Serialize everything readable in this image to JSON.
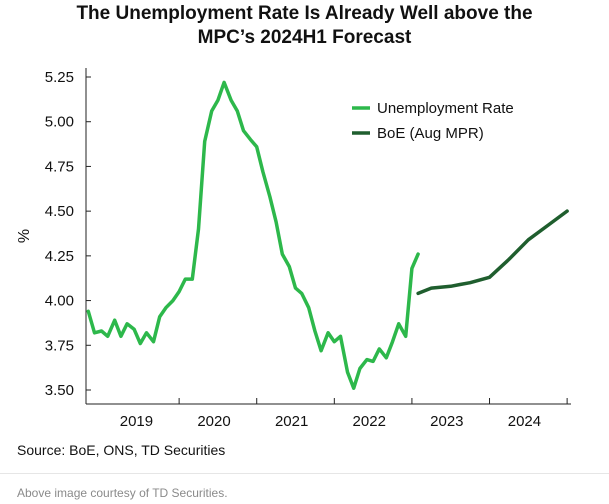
{
  "chart_data": {
    "type": "line",
    "title_line1": "The Unemployment Rate Is Already Well above the",
    "title_line2": "MPC’s 2024H1 Forecast",
    "ylabel": "%",
    "ylim": [
      3.45,
      5.3
    ],
    "yticks": [
      "3.50",
      "3.75",
      "4.00",
      "4.25",
      "4.50",
      "4.75",
      "5.00",
      "5.25"
    ],
    "xlim": [
      2018.75,
      2025.0
    ],
    "xticks": [
      {
        "label": "2019",
        "center": 2019.4
      },
      {
        "label": "2020",
        "center": 2020.4
      },
      {
        "label": "2021",
        "center": 2021.4
      },
      {
        "label": "2022",
        "center": 2022.4
      },
      {
        "label": "2023",
        "center": 2023.4
      },
      {
        "label": "2024",
        "center": 2024.4
      }
    ],
    "xtick_marks": [
      2018.75,
      2019.95,
      2020.95,
      2021.95,
      2022.95,
      2023.95,
      2024.95
    ],
    "series": [
      {
        "name": "Unemployment Rate",
        "color": "#2db84b",
        "x": [
          2018.78,
          2018.86,
          2018.95,
          2019.03,
          2019.12,
          2019.2,
          2019.28,
          2019.37,
          2019.45,
          2019.53,
          2019.62,
          2019.7,
          2019.78,
          2019.87,
          2019.95,
          2020.03,
          2020.12,
          2020.2,
          2020.28,
          2020.37,
          2020.45,
          2020.53,
          2020.62,
          2020.7,
          2020.78,
          2020.87,
          2020.95,
          2021.03,
          2021.12,
          2021.2,
          2021.28,
          2021.37,
          2021.45,
          2021.53,
          2021.62,
          2021.7,
          2021.78,
          2021.87,
          2021.95,
          2022.03,
          2022.12,
          2022.2,
          2022.28,
          2022.37,
          2022.45,
          2022.53,
          2022.62,
          2022.7,
          2022.78,
          2022.87,
          2022.95,
          2023.03
        ],
        "values": [
          3.94,
          3.82,
          3.83,
          3.8,
          3.89,
          3.8,
          3.87,
          3.84,
          3.76,
          3.82,
          3.77,
          3.91,
          3.96,
          4.0,
          4.05,
          4.12,
          4.12,
          4.4,
          4.89,
          5.06,
          5.12,
          5.22,
          5.12,
          5.06,
          4.95,
          4.9,
          4.86,
          4.72,
          4.58,
          4.44,
          4.26,
          4.19,
          4.07,
          4.04,
          3.96,
          3.83,
          3.72,
          3.82,
          3.77,
          3.8,
          3.6,
          3.51,
          3.62,
          3.67,
          3.66,
          3.73,
          3.68,
          3.77,
          3.87,
          3.8,
          4.18,
          4.26
        ]
      },
      {
        "name": "BoE (Aug MPR)",
        "color": "#1f5e2e",
        "x": [
          2023.03,
          2023.2,
          2023.45,
          2023.57,
          2023.7,
          2023.95,
          2024.2,
          2024.45,
          2024.7,
          2024.95
        ],
        "values": [
          4.04,
          4.07,
          4.08,
          4.09,
          4.1,
          4.13,
          4.23,
          4.34,
          4.42,
          4.5
        ]
      }
    ],
    "legend": [
      "Unemployment Rate",
      "BoE (Aug MPR)"
    ],
    "legend_position": "top-right",
    "grid": false
  },
  "footer": {
    "source": "Source: BoE, ONS, TD Securities",
    "courtesy": "Above image courtesy of TD Securities."
  }
}
